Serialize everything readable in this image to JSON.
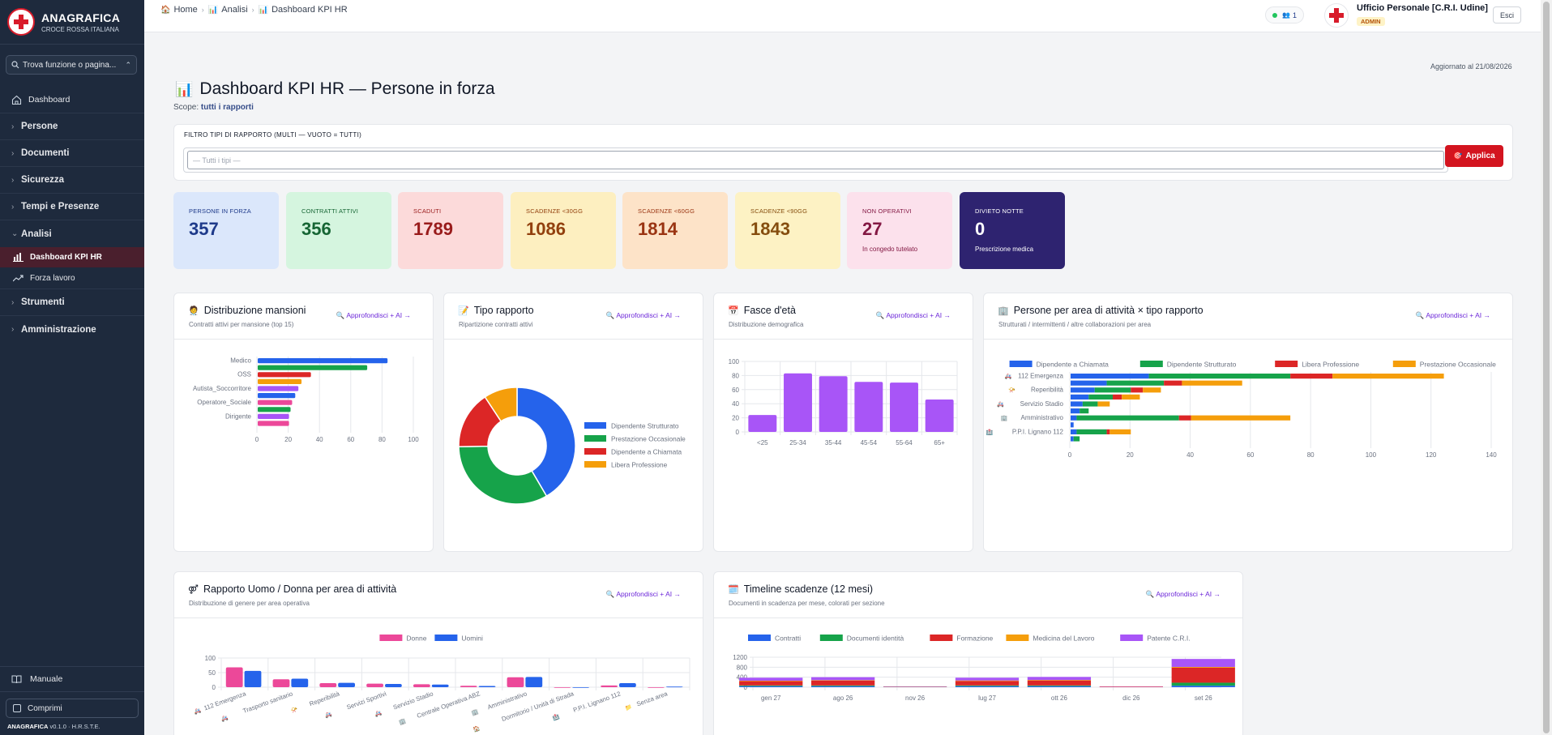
{
  "sidebar": {
    "brand_title": "ANAGRAFICA",
    "brand_sub": "CROCE ROSSA ITALIANA",
    "search_placeholder": "Trova funzione o pagina...",
    "dashboard": "Dashboard",
    "groups": [
      "Persone",
      "Documenti",
      "Sicurezza",
      "Tempi e Presenze"
    ],
    "analisi": "Analisi",
    "analisi_items": [
      "Dashboard KPI HR",
      "Forza lavoro"
    ],
    "groups2": [
      "Strumenti",
      "Amministrazione"
    ],
    "manual": "Manuale",
    "collapse": "Comprimi",
    "version_app": "ANAGRAFICA",
    "version_num": "v0.1.0 · H.R.S.T.E."
  },
  "topbar": {
    "crumbs": [
      "Home",
      "Analisi",
      "Dashboard KPI HR"
    ],
    "online_count": "1",
    "user_name": "Ufficio Personale [C.R.I. Udine]",
    "user_role": "ADMIN",
    "logout": "Esci"
  },
  "page": {
    "updated": "Aggiornato al 21/08/2026",
    "title": "Dashboard KPI HR — Persone in forza",
    "scope_label": "Scope:",
    "scope_value": "tutti i rapporti",
    "filter_label": "FILTRO TIPI DI RAPPORTO (MULTI — VUOTO = TUTTI)",
    "filter_placeholder": "— Tutti i tipi —",
    "apply": "Applica"
  },
  "kpis": [
    {
      "label": "PERSONE IN FORZA",
      "value": "357",
      "sub": "",
      "bg": "#dbe7fb",
      "fg": "#1e3a8a"
    },
    {
      "label": "CONTRATTI ATTIVI",
      "value": "356",
      "sub": "",
      "bg": "#d5f5df",
      "fg": "#166534"
    },
    {
      "label": "SCADUTI",
      "value": "1789",
      "sub": "",
      "bg": "#fcdada",
      "fg": "#991b1b"
    },
    {
      "label": "SCADENZE <30GG",
      "value": "1086",
      "sub": "",
      "bg": "#fdefc0",
      "fg": "#92400e"
    },
    {
      "label": "SCADENZE <60GG",
      "value": "1814",
      "sub": "",
      "bg": "#fde3c8",
      "fg": "#9a3412"
    },
    {
      "label": "SCADENZE <90GG",
      "value": "1843",
      "sub": "",
      "bg": "#fdf2c4",
      "fg": "#854d0e"
    },
    {
      "label": "NON OPERATIVI",
      "value": "27",
      "sub": "In congedo tutelato",
      "bg": "#fce1ec",
      "fg": "#831843"
    },
    {
      "label": "DIVIETO NOTTE",
      "value": "0",
      "sub": "Prescrizione medica",
      "bg": "#2e2370",
      "fg": "#ffffff"
    }
  ],
  "cards": {
    "mansioni": {
      "title": "Distribuzione mansioni",
      "sub": "Contratti attivi per mansione (top 15)",
      "link": "🔍 Approfondisci + AI →"
    },
    "tipo": {
      "title": "Tipo rapporto",
      "sub": "Ripartizione contratti attivi",
      "link": "🔍 Approfondisci + AI →"
    },
    "eta": {
      "title": "Fasce d'età",
      "sub": "Distribuzione demografica",
      "link": "🔍 Approfondisci + AI →"
    },
    "area": {
      "title": "Persone per area di attività × tipo rapporto",
      "sub": "Strutturati / intermittenti / altre collaborazioni per area",
      "link": "🔍 Approfondisci + AI →"
    },
    "genere": {
      "title": "Rapporto Uomo / Donna per area di attività",
      "sub": "Distribuzione di genere per area operativa",
      "link": "🔍 Approfondisci + AI →"
    },
    "timeline": {
      "title": "Timeline scadenze (12 mesi)",
      "sub": "Documenti in scadenza per mese, colorati per sezione",
      "link": "🔍 Approfondisci + AI →"
    }
  },
  "colors": {
    "blue": "#2563eb",
    "green": "#16a34a",
    "red": "#dc2626",
    "orange": "#f59e0b",
    "purple": "#a855f7",
    "pink": "#ec4899",
    "amber": "#f97316",
    "brand_red": "#d3141f"
  },
  "chart_data": [
    {
      "id": "mansioni",
      "type": "bar",
      "orientation": "horizontal",
      "categories": [
        "Medico",
        "",
        "OSS",
        "",
        "Autista_Soccorritore",
        "",
        "Operatore_Sociale",
        "",
        "Dirigente",
        ""
      ],
      "values": [
        83,
        70,
        34,
        28,
        26,
        24,
        22,
        21,
        20,
        20
      ],
      "bar_colors": [
        "#2563eb",
        "#16a34a",
        "#dc2626",
        "#f59e0b",
        "#a855f7",
        "#2563eb",
        "#ec4899",
        "#16a34a",
        "#a855f7",
        "#ec4899"
      ],
      "xlim": [
        0,
        100
      ],
      "xticks": [
        0,
        20,
        40,
        60,
        80,
        100
      ]
    },
    {
      "id": "tipo",
      "type": "pie",
      "donut": true,
      "labels": [
        "Dipendente Strutturato",
        "Prestazione Occasionale",
        "Dipendente a Chiamata",
        "Libera Professione"
      ],
      "values": [
        148,
        118,
        57,
        33
      ],
      "colors": [
        "#2563eb",
        "#16a34a",
        "#dc2626",
        "#f59e0b"
      ],
      "legend": "right"
    },
    {
      "id": "eta",
      "type": "bar",
      "categories": [
        "<25",
        "25-34",
        "35-44",
        "45-54",
        "55-64",
        "65+"
      ],
      "values": [
        24,
        83,
        79,
        71,
        70,
        46
      ],
      "color": "#a855f7",
      "ylim": [
        0,
        100
      ],
      "yticks": [
        0,
        20,
        40,
        60,
        80,
        100
      ]
    },
    {
      "id": "area",
      "type": "bar",
      "orientation": "horizontal",
      "stacked": true,
      "categories": [
        "112 Emergenza",
        "",
        "Reperibilità",
        "",
        "Servizio Stadio",
        "",
        "Amministrativo",
        "",
        "P.P.I. Lignano 112",
        ""
      ],
      "category_icons": [
        "🚑",
        "",
        "📯",
        "",
        "🚑",
        "",
        "🏢",
        "",
        "🏥",
        ""
      ],
      "series": [
        {
          "name": "Dipendente a Chiamata",
          "color": "#2563eb",
          "values": [
            26,
            12,
            8,
            6,
            4,
            3,
            2,
            1,
            2,
            1
          ]
        },
        {
          "name": "Dipendente Strutturato",
          "color": "#16a34a",
          "values": [
            47,
            19,
            12,
            8,
            5,
            3,
            34,
            0,
            10,
            2
          ]
        },
        {
          "name": "Libera Professione",
          "color": "#dc2626",
          "values": [
            14,
            6,
            4,
            3,
            0,
            0,
            4,
            0,
            1,
            0
          ]
        },
        {
          "name": "Prestazione Occasionale",
          "color": "#f59e0b",
          "values": [
            37,
            20,
            6,
            6,
            4,
            0,
            33,
            0,
            7,
            0
          ]
        }
      ],
      "xlim": [
        0,
        140
      ],
      "xticks": [
        0,
        20,
        40,
        60,
        80,
        100,
        120,
        140
      ],
      "legend": "top"
    },
    {
      "id": "genere",
      "type": "bar",
      "categories": [
        "112 Emergenza",
        "Trasporto sanitario",
        "Reperibilità",
        "Servizi Sportivi",
        "Servizio Stadio",
        "Centrale Operativa ABZ",
        "Amministrativo",
        "Dormitorio / Unità di Strada",
        "P.P.I. Lignano 112",
        "Senza area"
      ],
      "category_icons": [
        "🚑",
        "🚑",
        "📯",
        "🚑",
        "🚑",
        "🏢",
        "🏢",
        "🏠",
        "🏥",
        "📁"
      ],
      "series": [
        {
          "name": "Donne",
          "color": "#ec4899",
          "values": [
            68,
            27,
            14,
            12,
            10,
            5,
            34,
            0,
            6,
            0
          ]
        },
        {
          "name": "Uomini",
          "color": "#2563eb",
          "values": [
            56,
            29,
            15,
            11,
            9,
            4,
            35,
            0,
            14,
            2
          ]
        }
      ],
      "ylim": [
        0,
        100
      ],
      "yticks": [
        0,
        50,
        100
      ],
      "legend": "top"
    },
    {
      "id": "timeline",
      "type": "bar",
      "stacked": true,
      "categories": [
        "gen 27",
        "",
        "ago 26",
        "",
        "nov 26",
        "",
        "lug 27",
        "",
        "ott 26",
        "",
        "dic 26",
        "",
        "set 26"
      ],
      "series": [
        {
          "name": "Contratti",
          "color": "#2563eb",
          "values": [
            40,
            0,
            40,
            0,
            5,
            0,
            40,
            0,
            40,
            0,
            0,
            0,
            60
          ]
        },
        {
          "name": "Documenti identità",
          "color": "#16a34a",
          "values": [
            30,
            0,
            30,
            0,
            5,
            0,
            30,
            0,
            30,
            0,
            0,
            0,
            120
          ]
        },
        {
          "name": "Formazione",
          "color": "#dc2626",
          "values": [
            170,
            0,
            190,
            0,
            15,
            0,
            180,
            0,
            200,
            0,
            20,
            0,
            600
          ]
        },
        {
          "name": "Medicina del Lavoro",
          "color": "#f59e0b",
          "values": [
            20,
            0,
            20,
            0,
            0,
            0,
            20,
            0,
            20,
            0,
            0,
            0,
            30
          ]
        },
        {
          "name": "Patente C.R.I.",
          "color": "#a855f7",
          "values": [
            120,
            0,
            120,
            0,
            10,
            0,
            110,
            0,
            120,
            0,
            10,
            0,
            320
          ]
        }
      ],
      "ylim": [
        0,
        1200
      ],
      "yticks": [
        0,
        400,
        800,
        1200
      ],
      "legend": "top"
    }
  ]
}
